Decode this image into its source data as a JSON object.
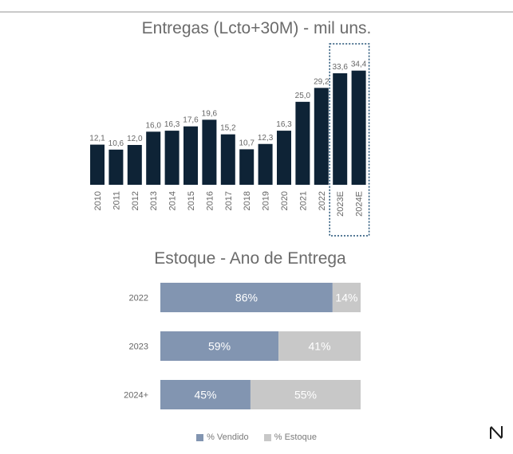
{
  "colors": {
    "bar": "#0e2336",
    "vendido": "#8295b1",
    "estoque": "#c8c8c8",
    "label": "#666666",
    "highlight_border": "#1f4f73"
  },
  "logo": {
    "icon": "n-brand-logo"
  },
  "chart_data": [
    {
      "type": "bar",
      "title": "Entregas (Lcto+30M) - mil uns.",
      "categories": [
        "2010",
        "2011",
        "2012",
        "2013",
        "2014",
        "2015",
        "2016",
        "2017",
        "2018",
        "2019",
        "2020",
        "2021",
        "2022",
        "2023E",
        "2024E"
      ],
      "values": [
        12.1,
        10.6,
        12.0,
        16.0,
        16.3,
        17.6,
        19.6,
        15.2,
        10.7,
        12.3,
        16.3,
        25.0,
        29.2,
        33.6,
        34.4
      ],
      "value_labels": [
        "12,1",
        "10,6",
        "12,0",
        "16,0",
        "16,3",
        "17,6",
        "19,6",
        "15,2",
        "10,7",
        "12,3",
        "16,3",
        "25,0",
        "29,2",
        "33,6",
        "34,4"
      ],
      "highlight": [
        "2023E",
        "2024E"
      ],
      "xlabel": "",
      "ylabel": "",
      "ylim": [
        0,
        36
      ],
      "grid": false
    },
    {
      "type": "bar",
      "orientation": "horizontal-stacked-100",
      "title": "Estoque - Ano de Entrega",
      "categories": [
        "2022",
        "2023",
        "2024+"
      ],
      "series": [
        {
          "name": "% Vendido",
          "values": [
            86,
            59,
            45
          ],
          "labels": [
            "86%",
            "59%",
            "45%"
          ]
        },
        {
          "name": "% Estoque",
          "values": [
            14,
            41,
            55
          ],
          "labels": [
            "14%",
            "41%",
            "55%"
          ]
        }
      ],
      "xlim": [
        0,
        100
      ],
      "legend": "bottom",
      "grid": false
    }
  ]
}
